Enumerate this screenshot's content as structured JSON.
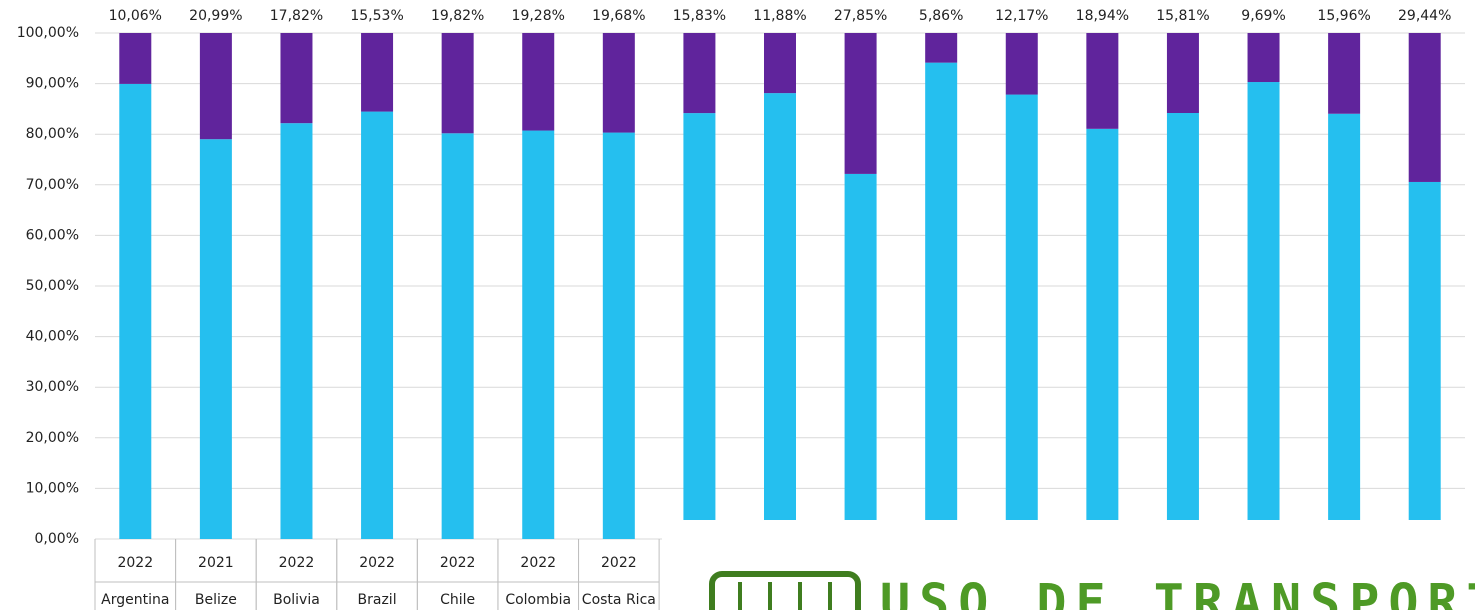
{
  "chart_data": {
    "type": "stacked_bar",
    "categories": [
      "Argentina",
      "Belize",
      "Bolivia",
      "Brazil",
      "Chile",
      "Colombia",
      "Costa Rica",
      null,
      null,
      null,
      null,
      null,
      null,
      null,
      null,
      null,
      null
    ],
    "years": [
      "2022",
      "2021",
      "2022",
      "2022",
      "2022",
      "2022",
      "2022",
      null,
      null,
      null,
      null,
      null,
      null,
      null,
      null,
      null,
      null
    ],
    "series": [
      {
        "color": "#25bfef",
        "values": [
          89.94,
          79.01,
          82.18,
          84.47,
          80.18,
          80.72,
          80.32,
          84.17,
          88.12,
          72.15,
          94.14,
          87.83,
          81.06,
          84.19,
          90.31,
          84.04,
          70.56
        ]
      },
      {
        "color": "#60249c",
        "values": [
          10.06,
          20.99,
          17.82,
          15.53,
          19.82,
          19.28,
          19.68,
          15.83,
          11.88,
          27.85,
          5.86,
          12.17,
          18.94,
          15.81,
          9.69,
          15.96,
          29.44
        ],
        "value_labels": [
          "10,06%",
          "20,99%",
          "17,82%",
          "15,53%",
          "19,82%",
          "19,28%",
          "19,68%",
          "15,83%",
          "11,88%",
          "27,85%",
          "5,86%",
          "12,17%",
          "18,94%",
          "15,81%",
          "9,69%",
          "15,96%",
          "29,44%"
        ]
      }
    ],
    "ylim": [
      0,
      100
    ],
    "yticks": [
      {
        "value": 0,
        "label": "0,00%"
      },
      {
        "value": 10,
        "label": "10,00%"
      },
      {
        "value": 20,
        "label": "20,00%"
      },
      {
        "value": 30,
        "label": "30,00%"
      },
      {
        "value": 40,
        "label": "40,00%"
      },
      {
        "value": 50,
        "label": "50,00%"
      },
      {
        "value": 60,
        "label": "60,00%"
      },
      {
        "value": 70,
        "label": "70,00%"
      },
      {
        "value": 80,
        "label": "80,00%"
      },
      {
        "value": 90,
        "label": "90,00%"
      },
      {
        "value": 100,
        "label": "100,00%"
      }
    ],
    "grid": true,
    "overlay_text": "USO DE TRANSPORTE PÚB"
  }
}
